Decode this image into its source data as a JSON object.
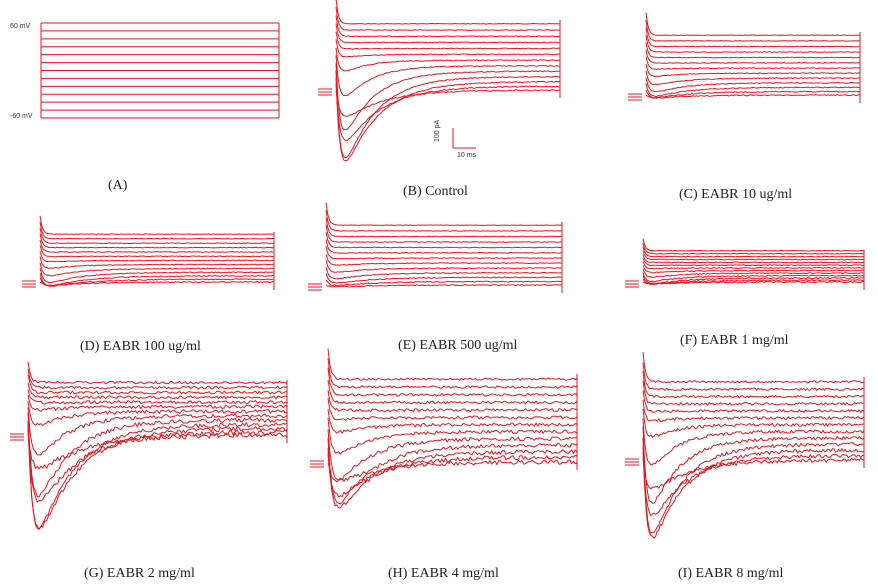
{
  "panel_a": {
    "label": "(A)",
    "top_voltage": "60 mV",
    "bottom_voltage": "-60 mV",
    "step_count": 13
  },
  "scale_bar": {
    "current": "100 pA",
    "time": "10 ms"
  },
  "panels": [
    {
      "id": "B",
      "label": "(B)   Control",
      "peak": 1.0,
      "trace_count": 13
    },
    {
      "id": "C",
      "label": "(C)   EABR 10 ug/ml",
      "peak": 0.35,
      "trace_count": 13
    },
    {
      "id": "D",
      "label": "(D)   EABR  100 ug/ml",
      "peak": 0.33,
      "trace_count": 13
    },
    {
      "id": "E",
      "label": "(E)   EABR  500 ug/ml",
      "peak": 0.32,
      "trace_count": 13
    },
    {
      "id": "F",
      "label": "(F)   EABR 1 mg/ml",
      "peak": 0.25,
      "trace_count": 13
    },
    {
      "id": "G",
      "label": "(G) EABR  2 mg/ml",
      "peak": 0.95,
      "trace_count": 13
    },
    {
      "id": "H",
      "label": "(H)   EABR  4 mg/ml",
      "peak": 0.7,
      "trace_count": 13
    },
    {
      "id": "I",
      "label": "(I)   EABR  8 mg/ml",
      "peak": 0.95,
      "trace_count": 13
    }
  ],
  "colors": {
    "trace": "#e8141c",
    "text": "#222222"
  }
}
